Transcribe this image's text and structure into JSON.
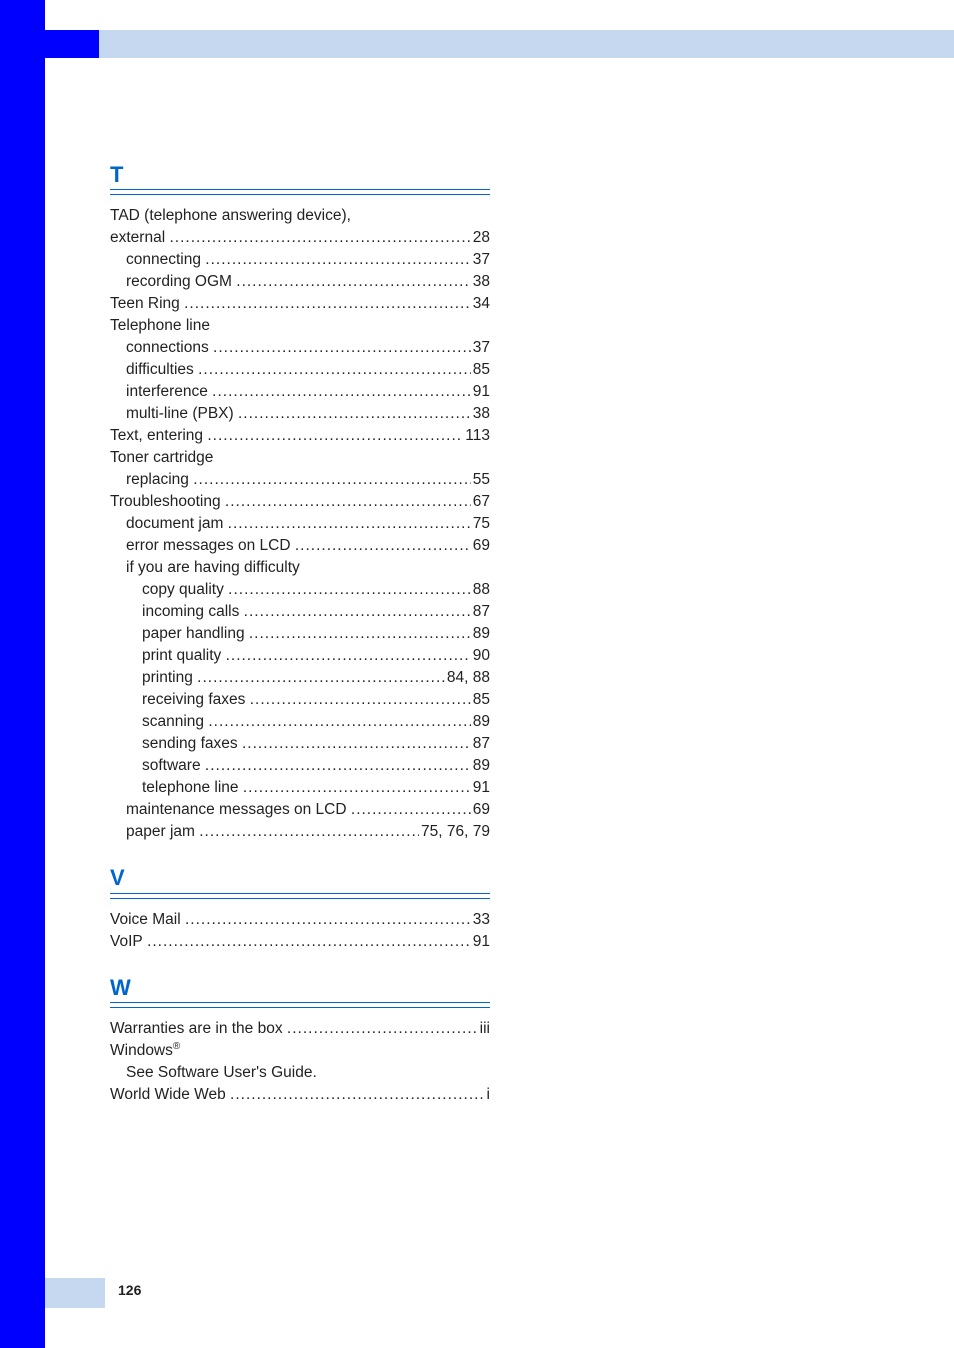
{
  "page_number": "126",
  "sections": [
    {
      "letter": "T",
      "entries": [
        {
          "label": "TAD (telephone answering device),",
          "indent": 0,
          "page": "",
          "nopage": true
        },
        {
          "label": "external",
          "indent": 0,
          "page": "28"
        },
        {
          "label": "connecting",
          "indent": 1,
          "page": "37"
        },
        {
          "label": "recording OGM",
          "indent": 1,
          "page": "38"
        },
        {
          "label": "Teen Ring",
          "indent": 0,
          "page": "34"
        },
        {
          "label": "Telephone line",
          "indent": 0,
          "page": "",
          "nopage": true
        },
        {
          "label": "connections",
          "indent": 1,
          "page": "37"
        },
        {
          "label": "difficulties",
          "indent": 1,
          "page": "85"
        },
        {
          "label": "interference",
          "indent": 1,
          "page": "91"
        },
        {
          "label": "multi-line (PBX)",
          "indent": 1,
          "page": "38"
        },
        {
          "label": "Text, entering",
          "indent": 0,
          "page": "113"
        },
        {
          "label": "Toner cartridge",
          "indent": 0,
          "page": "",
          "nopage": true
        },
        {
          "label": "replacing",
          "indent": 1,
          "page": "55"
        },
        {
          "label": "Troubleshooting",
          "indent": 0,
          "page": "67"
        },
        {
          "label": "document jam",
          "indent": 1,
          "page": "75"
        },
        {
          "label": "error messages on LCD",
          "indent": 1,
          "page": "69"
        },
        {
          "label": "if you are having difficulty",
          "indent": 1,
          "page": "",
          "nopage": true
        },
        {
          "label": "copy quality",
          "indent": 2,
          "page": "88"
        },
        {
          "label": "incoming calls",
          "indent": 2,
          "page": "87"
        },
        {
          "label": "paper handling",
          "indent": 2,
          "page": "89"
        },
        {
          "label": "print quality",
          "indent": 2,
          "page": "90"
        },
        {
          "label": "printing",
          "indent": 2,
          "page": " 84, 88"
        },
        {
          "label": "receiving faxes",
          "indent": 2,
          "page": "85"
        },
        {
          "label": "scanning",
          "indent": 2,
          "page": "89"
        },
        {
          "label": "sending faxes",
          "indent": 2,
          "page": "87"
        },
        {
          "label": "software",
          "indent": 2,
          "page": "89"
        },
        {
          "label": "telephone line",
          "indent": 2,
          "page": "91"
        },
        {
          "label": "maintenance messages on LCD",
          "indent": 1,
          "page": "69"
        },
        {
          "label": "paper jam",
          "indent": 1,
          "page": "75, 76, 79"
        }
      ]
    },
    {
      "letter": "V",
      "entries": [
        {
          "label": "Voice Mail",
          "indent": 0,
          "page": "33"
        },
        {
          "label": "VoIP",
          "indent": 0,
          "page": "91"
        }
      ]
    },
    {
      "letter": "W",
      "entries": [
        {
          "label": "Warranties are in the box",
          "indent": 0,
          "page": " iii"
        },
        {
          "label": "Windows",
          "sup": "®",
          "indent": 0,
          "page": "",
          "nopage": true
        },
        {
          "label": "See Software User's Guide.",
          "indent": 1,
          "page": "",
          "nopage": true
        },
        {
          "label": "World Wide Web",
          "indent": 0,
          "page": "i"
        }
      ]
    }
  ]
}
